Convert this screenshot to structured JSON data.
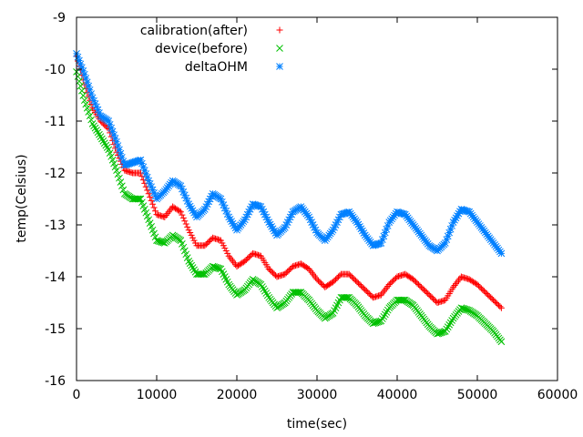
{
  "chart_data": {
    "type": "scatter",
    "title": "",
    "xlabel": "time(sec)",
    "ylabel": "temp(Celsius)",
    "xlim": [
      0,
      60000
    ],
    "ylim": [
      -16,
      -9
    ],
    "xticks": [
      0,
      10000,
      20000,
      30000,
      40000,
      50000,
      60000
    ],
    "xtick_labels": [
      "0",
      "10000",
      "20000",
      "30000",
      "40000",
      "50000",
      "60000"
    ],
    "yticks": [
      -16,
      -15,
      -14,
      -13,
      -12,
      -11,
      -10,
      -9
    ],
    "ytick_labels": [
      "-16",
      "-15",
      "-14",
      "-13",
      "-12",
      "-11",
      "-10",
      "-9"
    ],
    "legend_position": "top-left",
    "grid": false,
    "series": [
      {
        "name": "calibration(after)",
        "color": "#ff0000",
        "marker": "plus",
        "points": [
          [
            0,
            -9.75
          ],
          [
            1000,
            -10.3
          ],
          [
            2000,
            -10.75
          ],
          [
            3000,
            -11.0
          ],
          [
            4000,
            -11.15
          ],
          [
            5000,
            -11.6
          ],
          [
            6000,
            -11.95
          ],
          [
            7000,
            -12.0
          ],
          [
            8000,
            -12.0
          ],
          [
            9000,
            -12.4
          ],
          [
            10000,
            -12.8
          ],
          [
            11000,
            -12.85
          ],
          [
            12000,
            -12.65
          ],
          [
            13000,
            -12.75
          ],
          [
            14000,
            -13.1
          ],
          [
            15000,
            -13.4
          ],
          [
            16000,
            -13.4
          ],
          [
            17000,
            -13.25
          ],
          [
            18000,
            -13.3
          ],
          [
            19000,
            -13.6
          ],
          [
            20000,
            -13.8
          ],
          [
            21000,
            -13.7
          ],
          [
            22000,
            -13.55
          ],
          [
            23000,
            -13.6
          ],
          [
            24000,
            -13.85
          ],
          [
            25000,
            -14.0
          ],
          [
            26000,
            -13.95
          ],
          [
            27000,
            -13.8
          ],
          [
            28000,
            -13.75
          ],
          [
            29000,
            -13.85
          ],
          [
            30000,
            -14.05
          ],
          [
            31000,
            -14.2
          ],
          [
            32000,
            -14.1
          ],
          [
            33000,
            -13.95
          ],
          [
            34000,
            -13.95
          ],
          [
            35000,
            -14.1
          ],
          [
            36000,
            -14.25
          ],
          [
            37000,
            -14.4
          ],
          [
            38000,
            -14.35
          ],
          [
            39000,
            -14.15
          ],
          [
            40000,
            -14.0
          ],
          [
            41000,
            -13.95
          ],
          [
            42000,
            -14.05
          ],
          [
            43000,
            -14.2
          ],
          [
            44000,
            -14.35
          ],
          [
            45000,
            -14.5
          ],
          [
            46000,
            -14.45
          ],
          [
            47000,
            -14.2
          ],
          [
            48000,
            -14.0
          ],
          [
            49000,
            -14.05
          ],
          [
            50000,
            -14.15
          ],
          [
            51000,
            -14.3
          ],
          [
            52000,
            -14.45
          ],
          [
            53000,
            -14.6
          ]
        ]
      },
      {
        "name": "device(before)",
        "color": "#00c000",
        "marker": "cross",
        "points": [
          [
            0,
            -10.05
          ],
          [
            1000,
            -10.6
          ],
          [
            2000,
            -11.05
          ],
          [
            3000,
            -11.3
          ],
          [
            4000,
            -11.55
          ],
          [
            5000,
            -11.95
          ],
          [
            6000,
            -12.4
          ],
          [
            7000,
            -12.5
          ],
          [
            8000,
            -12.5
          ],
          [
            9000,
            -12.9
          ],
          [
            10000,
            -13.3
          ],
          [
            11000,
            -13.35
          ],
          [
            12000,
            -13.2
          ],
          [
            13000,
            -13.3
          ],
          [
            14000,
            -13.7
          ],
          [
            15000,
            -13.95
          ],
          [
            16000,
            -13.95
          ],
          [
            17000,
            -13.8
          ],
          [
            18000,
            -13.85
          ],
          [
            19000,
            -14.15
          ],
          [
            20000,
            -14.35
          ],
          [
            21000,
            -14.25
          ],
          [
            22000,
            -14.05
          ],
          [
            23000,
            -14.15
          ],
          [
            24000,
            -14.4
          ],
          [
            25000,
            -14.6
          ],
          [
            26000,
            -14.5
          ],
          [
            27000,
            -14.3
          ],
          [
            28000,
            -14.3
          ],
          [
            29000,
            -14.45
          ],
          [
            30000,
            -14.65
          ],
          [
            31000,
            -14.8
          ],
          [
            32000,
            -14.7
          ],
          [
            33000,
            -14.4
          ],
          [
            34000,
            -14.4
          ],
          [
            35000,
            -14.55
          ],
          [
            36000,
            -14.75
          ],
          [
            37000,
            -14.9
          ],
          [
            38000,
            -14.85
          ],
          [
            39000,
            -14.6
          ],
          [
            40000,
            -14.45
          ],
          [
            41000,
            -14.45
          ],
          [
            42000,
            -14.55
          ],
          [
            43000,
            -14.75
          ],
          [
            44000,
            -14.95
          ],
          [
            45000,
            -15.1
          ],
          [
            46000,
            -15.05
          ],
          [
            47000,
            -14.8
          ],
          [
            48000,
            -14.6
          ],
          [
            49000,
            -14.65
          ],
          [
            50000,
            -14.75
          ],
          [
            51000,
            -14.9
          ],
          [
            52000,
            -15.05
          ],
          [
            53000,
            -15.25
          ]
        ]
      },
      {
        "name": "deltaOHM",
        "color": "#0080ff",
        "marker": "star",
        "points": [
          [
            0,
            -9.7
          ],
          [
            1000,
            -10.1
          ],
          [
            2000,
            -10.55
          ],
          [
            3000,
            -10.9
          ],
          [
            4000,
            -11.0
          ],
          [
            5000,
            -11.4
          ],
          [
            6000,
            -11.85
          ],
          [
            7000,
            -11.8
          ],
          [
            8000,
            -11.75
          ],
          [
            9000,
            -12.15
          ],
          [
            10000,
            -12.5
          ],
          [
            11000,
            -12.35
          ],
          [
            12000,
            -12.15
          ],
          [
            13000,
            -12.25
          ],
          [
            14000,
            -12.6
          ],
          [
            15000,
            -12.85
          ],
          [
            16000,
            -12.7
          ],
          [
            17000,
            -12.4
          ],
          [
            18000,
            -12.5
          ],
          [
            19000,
            -12.85
          ],
          [
            20000,
            -13.1
          ],
          [
            21000,
            -12.9
          ],
          [
            22000,
            -12.6
          ],
          [
            23000,
            -12.65
          ],
          [
            24000,
            -12.95
          ],
          [
            25000,
            -13.2
          ],
          [
            26000,
            -13.05
          ],
          [
            27000,
            -12.75
          ],
          [
            28000,
            -12.65
          ],
          [
            29000,
            -12.85
          ],
          [
            30000,
            -13.15
          ],
          [
            31000,
            -13.3
          ],
          [
            32000,
            -13.1
          ],
          [
            33000,
            -12.8
          ],
          [
            34000,
            -12.75
          ],
          [
            35000,
            -12.95
          ],
          [
            36000,
            -13.2
          ],
          [
            37000,
            -13.4
          ],
          [
            38000,
            -13.35
          ],
          [
            39000,
            -12.95
          ],
          [
            40000,
            -12.75
          ],
          [
            41000,
            -12.8
          ],
          [
            42000,
            -13.0
          ],
          [
            43000,
            -13.2
          ],
          [
            44000,
            -13.4
          ],
          [
            45000,
            -13.5
          ],
          [
            46000,
            -13.35
          ],
          [
            47000,
            -12.95
          ],
          [
            48000,
            -12.7
          ],
          [
            49000,
            -12.75
          ],
          [
            50000,
            -12.95
          ],
          [
            51000,
            -13.15
          ],
          [
            52000,
            -13.35
          ],
          [
            53000,
            -13.55
          ]
        ]
      }
    ]
  }
}
